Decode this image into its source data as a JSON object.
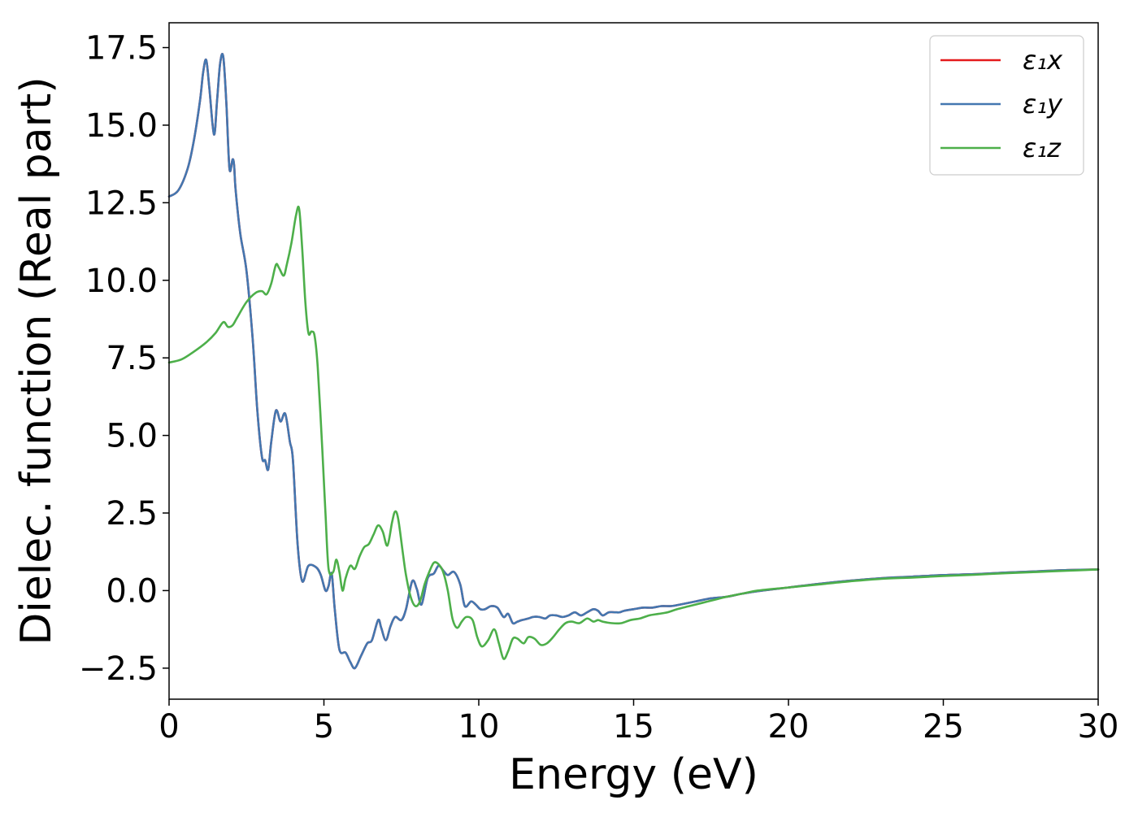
{
  "chart_data": {
    "type": "line",
    "title": "",
    "xlabel": "Energy (eV)",
    "ylabel": "Dielec. function (Real part)",
    "xlim": [
      0,
      30
    ],
    "ylim": [
      -3.5,
      18.3
    ],
    "xticks": [
      0,
      5,
      10,
      15,
      20,
      25,
      30
    ],
    "xtick_labels": [
      "0",
      "5",
      "10",
      "15",
      "20",
      "25",
      "30"
    ],
    "yticks": [
      -2.5,
      0.0,
      2.5,
      5.0,
      7.5,
      10.0,
      12.5,
      15.0,
      17.5
    ],
    "ytick_labels": [
      "−2.5",
      "0.0",
      "2.5",
      "5.0",
      "7.5",
      "10.0",
      "12.5",
      "15.0",
      "17.5"
    ],
    "grid": false,
    "legend_position": "top-right",
    "series": [
      {
        "name": "ε₁x",
        "color": "#e41a1c",
        "x": [
          0,
          0.3,
          0.6,
          0.8,
          1.0,
          1.1,
          1.2,
          1.3,
          1.45,
          1.55,
          1.65,
          1.75,
          1.85,
          1.95,
          2.05,
          2.1,
          2.15,
          2.3,
          2.5,
          2.7,
          2.85,
          3.0,
          3.1,
          3.2,
          3.3,
          3.45,
          3.6,
          3.75,
          3.9,
          4.0,
          4.15,
          4.3,
          4.5,
          4.75,
          4.9,
          5.05,
          5.15,
          5.25,
          5.35,
          5.5,
          5.7,
          5.85,
          6.0,
          6.2,
          6.4,
          6.55,
          6.75,
          6.85,
          7.0,
          7.15,
          7.3,
          7.5,
          7.65,
          7.85,
          8.0,
          8.15,
          8.35,
          8.55,
          8.7,
          8.85,
          9.0,
          9.2,
          9.4,
          9.55,
          9.75,
          9.9,
          10.05,
          10.2,
          10.4,
          10.6,
          10.8,
          10.95,
          11.1,
          11.25,
          11.4,
          11.6,
          11.75,
          11.95,
          12.15,
          12.3,
          12.5,
          12.7,
          12.9,
          13.1,
          13.3,
          13.5,
          13.7,
          13.85,
          14.0,
          14.2,
          14.4,
          14.55,
          14.7,
          15.0,
          15.3,
          15.6,
          15.9,
          16.2,
          16.5,
          17.0,
          17.5,
          18.0,
          18.5,
          19.0,
          20.0,
          21.0,
          22.0,
          23.0,
          24.0,
          25.0,
          26.0,
          27.0,
          28.0,
          29.0,
          30.0
        ],
        "values": [
          12.7,
          12.9,
          13.6,
          14.5,
          15.8,
          16.7,
          17.1,
          16.2,
          14.7,
          15.8,
          17.0,
          17.2,
          15.7,
          13.6,
          13.9,
          13.7,
          12.9,
          11.5,
          10.3,
          8.1,
          5.8,
          4.3,
          4.2,
          3.9,
          4.8,
          5.8,
          5.45,
          5.7,
          4.8,
          4.2,
          1.5,
          0.3,
          0.8,
          0.75,
          0.5,
          0.0,
          0.15,
          0.55,
          -0.6,
          -1.9,
          -2.0,
          -2.3,
          -2.5,
          -2.1,
          -1.7,
          -1.6,
          -0.95,
          -1.2,
          -1.6,
          -1.15,
          -0.85,
          -0.95,
          -0.6,
          0.3,
          0.05,
          -0.45,
          0.4,
          0.55,
          0.8,
          0.65,
          0.5,
          0.6,
          0.2,
          -0.5,
          -0.35,
          -0.45,
          -0.6,
          -0.6,
          -0.5,
          -0.55,
          -0.85,
          -0.75,
          -1.05,
          -1.0,
          -0.95,
          -0.9,
          -0.85,
          -0.85,
          -0.9,
          -0.8,
          -0.8,
          -0.85,
          -0.8,
          -0.7,
          -0.8,
          -0.7,
          -0.6,
          -0.65,
          -0.8,
          -0.7,
          -0.7,
          -0.7,
          -0.65,
          -0.6,
          -0.55,
          -0.55,
          -0.5,
          -0.5,
          -0.45,
          -0.35,
          -0.25,
          -0.2,
          -0.1,
          -0.02,
          0.1,
          0.22,
          0.32,
          0.4,
          0.45,
          0.5,
          0.53,
          0.58,
          0.62,
          0.66,
          0.68
        ]
      },
      {
        "name": "ε₁y",
        "color": "#4377b0",
        "x": [
          0,
          0.3,
          0.6,
          0.8,
          1.0,
          1.1,
          1.2,
          1.3,
          1.45,
          1.55,
          1.65,
          1.75,
          1.85,
          1.95,
          2.05,
          2.1,
          2.15,
          2.3,
          2.5,
          2.7,
          2.85,
          3.0,
          3.1,
          3.2,
          3.3,
          3.45,
          3.6,
          3.75,
          3.9,
          4.0,
          4.15,
          4.3,
          4.5,
          4.75,
          4.9,
          5.05,
          5.15,
          5.25,
          5.35,
          5.5,
          5.7,
          5.85,
          6.0,
          6.2,
          6.4,
          6.55,
          6.75,
          6.85,
          7.0,
          7.15,
          7.3,
          7.5,
          7.65,
          7.85,
          8.0,
          8.15,
          8.35,
          8.55,
          8.7,
          8.85,
          9.0,
          9.2,
          9.4,
          9.55,
          9.75,
          9.9,
          10.05,
          10.2,
          10.4,
          10.6,
          10.8,
          10.95,
          11.1,
          11.25,
          11.4,
          11.6,
          11.75,
          11.95,
          12.15,
          12.3,
          12.5,
          12.7,
          12.9,
          13.1,
          13.3,
          13.5,
          13.7,
          13.85,
          14.0,
          14.2,
          14.4,
          14.55,
          14.7,
          15.0,
          15.3,
          15.6,
          15.9,
          16.2,
          16.5,
          17.0,
          17.5,
          18.0,
          18.5,
          19.0,
          20.0,
          21.0,
          22.0,
          23.0,
          24.0,
          25.0,
          26.0,
          27.0,
          28.0,
          29.0,
          30.0
        ],
        "values": [
          12.7,
          12.9,
          13.6,
          14.5,
          15.8,
          16.7,
          17.1,
          16.2,
          14.7,
          15.8,
          17.0,
          17.2,
          15.7,
          13.6,
          13.9,
          13.7,
          12.9,
          11.5,
          10.3,
          8.1,
          5.8,
          4.3,
          4.2,
          3.9,
          4.8,
          5.8,
          5.45,
          5.7,
          4.8,
          4.2,
          1.5,
          0.3,
          0.8,
          0.75,
          0.5,
          0.0,
          0.15,
          0.55,
          -0.6,
          -1.9,
          -2.0,
          -2.3,
          -2.5,
          -2.1,
          -1.7,
          -1.6,
          -0.95,
          -1.2,
          -1.6,
          -1.15,
          -0.85,
          -0.95,
          -0.6,
          0.3,
          0.05,
          -0.45,
          0.4,
          0.55,
          0.8,
          0.65,
          0.5,
          0.6,
          0.2,
          -0.5,
          -0.35,
          -0.45,
          -0.6,
          -0.6,
          -0.5,
          -0.55,
          -0.85,
          -0.75,
          -1.05,
          -1.0,
          -0.95,
          -0.9,
          -0.85,
          -0.85,
          -0.9,
          -0.8,
          -0.8,
          -0.85,
          -0.8,
          -0.7,
          -0.8,
          -0.7,
          -0.6,
          -0.65,
          -0.8,
          -0.7,
          -0.7,
          -0.7,
          -0.65,
          -0.6,
          -0.55,
          -0.55,
          -0.5,
          -0.5,
          -0.45,
          -0.35,
          -0.25,
          -0.2,
          -0.1,
          -0.02,
          0.1,
          0.22,
          0.32,
          0.4,
          0.45,
          0.5,
          0.53,
          0.58,
          0.62,
          0.66,
          0.68
        ]
      },
      {
        "name": "ε₁z",
        "color": "#4daf4a",
        "x": [
          0,
          0.4,
          0.8,
          1.2,
          1.5,
          1.75,
          1.9,
          2.05,
          2.2,
          2.5,
          2.8,
          3.0,
          3.15,
          3.3,
          3.45,
          3.55,
          3.7,
          3.8,
          3.95,
          4.1,
          4.2,
          4.3,
          4.4,
          4.5,
          4.6,
          4.7,
          4.8,
          4.95,
          5.05,
          5.15,
          5.3,
          5.4,
          5.5,
          5.6,
          5.7,
          5.85,
          6.0,
          6.15,
          6.3,
          6.45,
          6.6,
          6.75,
          6.9,
          7.05,
          7.2,
          7.3,
          7.4,
          7.55,
          7.65,
          7.8,
          7.95,
          8.1,
          8.25,
          8.4,
          8.55,
          8.7,
          8.85,
          9.0,
          9.15,
          9.3,
          9.45,
          9.6,
          9.8,
          9.95,
          10.1,
          10.3,
          10.5,
          10.65,
          10.8,
          10.95,
          11.1,
          11.25,
          11.45,
          11.6,
          11.8,
          12.0,
          12.2,
          12.4,
          12.6,
          12.8,
          13.0,
          13.25,
          13.5,
          13.7,
          13.85,
          14.0,
          14.3,
          14.6,
          14.9,
          15.2,
          15.5,
          15.8,
          16.1,
          16.4,
          16.8,
          17.2,
          17.6,
          18.0,
          18.5,
          19.0,
          20.0,
          21.0,
          22.0,
          23.0,
          24.0,
          25.0,
          26.0,
          27.0,
          28.0,
          29.0,
          30.0
        ],
        "values": [
          7.35,
          7.45,
          7.7,
          8.0,
          8.3,
          8.65,
          8.5,
          8.55,
          8.8,
          9.3,
          9.6,
          9.65,
          9.55,
          9.9,
          10.5,
          10.4,
          10.15,
          10.5,
          11.2,
          12.1,
          12.3,
          11.0,
          9.3,
          8.3,
          8.35,
          8.2,
          7.2,
          4.5,
          2.5,
          0.7,
          0.6,
          1.0,
          0.6,
          0.0,
          0.4,
          0.8,
          0.7,
          1.1,
          1.4,
          1.5,
          1.8,
          2.1,
          1.9,
          1.45,
          2.2,
          2.55,
          2.3,
          1.2,
          0.5,
          -0.2,
          -0.5,
          -0.35,
          0.2,
          0.6,
          0.9,
          0.85,
          0.6,
          0.0,
          -0.9,
          -1.2,
          -1.0,
          -0.85,
          -0.95,
          -1.5,
          -1.8,
          -1.6,
          -1.25,
          -1.7,
          -2.2,
          -1.95,
          -1.55,
          -1.55,
          -1.7,
          -1.5,
          -1.55,
          -1.75,
          -1.7,
          -1.5,
          -1.25,
          -1.05,
          -1.0,
          -1.05,
          -0.9,
          -1.0,
          -0.95,
          -1.0,
          -1.05,
          -1.05,
          -0.95,
          -0.9,
          -0.8,
          -0.75,
          -0.7,
          -0.6,
          -0.5,
          -0.4,
          -0.3,
          -0.2,
          -0.1,
          0.0,
          0.1,
          0.2,
          0.3,
          0.38,
          0.42,
          0.47,
          0.51,
          0.56,
          0.6,
          0.64,
          0.68
        ]
      }
    ]
  }
}
